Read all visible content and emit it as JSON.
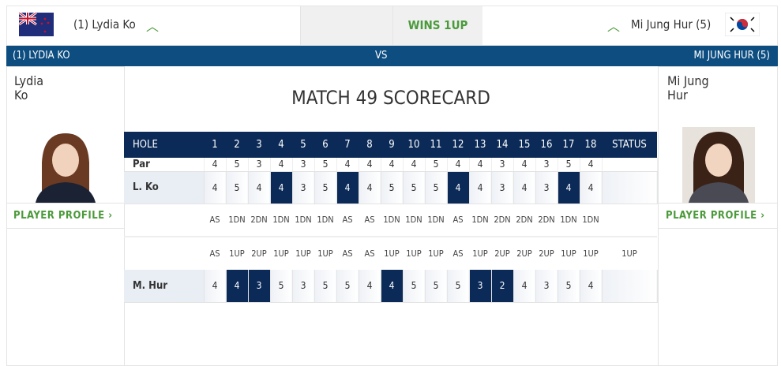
{
  "header": {
    "left_player": "(1) Lydia Ko",
    "right_player": "Mi Jung Hur (5)",
    "result": "WINS 1UP",
    "result_color": "#4a9a3a",
    "left_flag": "new-zealand-flag-icon",
    "right_flag": "south-korea-flag-icon"
  },
  "vs_bar": {
    "left": "(1) LYDIA KO",
    "center": "VS",
    "right": "MI JUNG HUR (5)",
    "color": "#0d4d80"
  },
  "left_panel": {
    "first": "Lydia",
    "last": "Ko",
    "profile_label": "PLAYER PROFILE"
  },
  "right_panel": {
    "first": "Mi Jung",
    "last": "Hur",
    "profile_label": "PLAYER PROFILE"
  },
  "scorecard": {
    "title": "MATCH 49 SCORECARD",
    "hole_label": "HOLE",
    "status_label": "STATUS",
    "par_label": "Par",
    "holes": [
      "1",
      "2",
      "3",
      "4",
      "5",
      "6",
      "7",
      "8",
      "9",
      "10",
      "11",
      "12",
      "13",
      "14",
      "15",
      "16",
      "17",
      "18"
    ],
    "par": [
      "4",
      "5",
      "3",
      "4",
      "3",
      "5",
      "4",
      "4",
      "4",
      "4",
      "5",
      "4",
      "4",
      "3",
      "4",
      "3",
      "5",
      "4"
    ],
    "players": [
      {
        "name": "L. Ko",
        "scores": [
          "4",
          "5",
          "4",
          "4",
          "3",
          "5",
          "4",
          "4",
          "5",
          "5",
          "5",
          "4",
          "4",
          "3",
          "4",
          "3",
          "4",
          "4"
        ],
        "won_holes": [
          4,
          7,
          12,
          17
        ]
      },
      {
        "name": "M. Hur",
        "scores": [
          "4",
          "4",
          "3",
          "5",
          "3",
          "5",
          "5",
          "4",
          "4",
          "5",
          "5",
          "5",
          "3",
          "2",
          "4",
          "3",
          "5",
          "4"
        ],
        "won_holes": [
          2,
          3,
          9,
          13,
          14
        ]
      }
    ],
    "ko_status": [
      "AS",
      "1DN",
      "2DN",
      "1DN",
      "1DN",
      "1DN",
      "AS",
      "AS",
      "1DN",
      "1DN",
      "1DN",
      "AS",
      "1DN",
      "2DN",
      "2DN",
      "2DN",
      "1DN",
      "1DN"
    ],
    "hur_status": [
      "AS",
      "1UP",
      "2UP",
      "1UP",
      "1UP",
      "1UP",
      "AS",
      "AS",
      "1UP",
      "1UP",
      "1UP",
      "AS",
      "1UP",
      "2UP",
      "2UP",
      "2UP",
      "1UP",
      "1UP"
    ],
    "final_status": "1UP"
  }
}
